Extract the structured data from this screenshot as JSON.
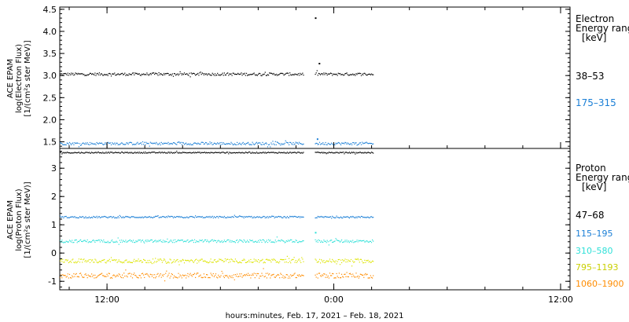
{
  "chart_data": [
    {
      "type": "scatter",
      "panel": "electron",
      "ylabel_lines": [
        "ACE EPAM",
        "log(Electron Flux)",
        "[1/(cm²s ster MeV)]"
      ],
      "y_ticks": [
        "1.5",
        "2.0",
        "2.5",
        "3.0",
        "3.5",
        "4.0",
        "4.5"
      ],
      "ylim": [
        1.35,
        4.55
      ],
      "legend_title_lines": [
        "Electron",
        "Energy ranges",
        "[keV]"
      ],
      "series": [
        {
          "name": "38–53",
          "color": "#000000",
          "level": 3.03,
          "spread": 0.03,
          "outliers": [
            {
              "x_hours": 23.0,
              "y": 4.3
            },
            {
              "x_hours": 23.2,
              "y": 3.27
            }
          ]
        },
        {
          "name": "175–315",
          "color": "#1b7fd6",
          "level": 1.46,
          "spread": 0.03,
          "outliers": [
            {
              "x_hours": 23.1,
              "y": 1.56
            }
          ]
        }
      ]
    },
    {
      "type": "scatter",
      "panel": "proton",
      "ylabel_lines": [
        "ACE EPAM",
        "log(Proton Flux)",
        "[1/(cm²s ster MeV)]"
      ],
      "y_ticks": [
        "-1",
        "0",
        "1",
        "2",
        "3"
      ],
      "ylim": [
        -1.3,
        3.7
      ],
      "legend_title_lines": [
        "Proton",
        "Energy ranges",
        "[keV]"
      ],
      "series": [
        {
          "name": "47–68",
          "color": "#000000",
          "level": 3.55,
          "spread": 0.02,
          "outliers": []
        },
        {
          "name": "115–195",
          "color": "#1b7fd6",
          "level": 1.27,
          "spread": 0.03,
          "outliers": []
        },
        {
          "name": "310–580",
          "color": "#2ee0d8",
          "level": 0.42,
          "spread": 0.05,
          "outliers": [
            {
              "x_hours": 23.0,
              "y": 0.72
            }
          ]
        },
        {
          "name": "795–1193",
          "color": "#dde400",
          "level": -0.28,
          "spread": 0.07,
          "outliers": []
        },
        {
          "name": "1060–1900",
          "color": "#ff8c00",
          "level": -0.8,
          "spread": 0.09,
          "outliers": []
        }
      ]
    }
  ],
  "x_axis": {
    "label": "hours:minutes, Feb. 17, 2021 – Feb. 18, 2021",
    "range_hours": [
      9.5,
      36.5
    ],
    "ticks": [
      {
        "hours": 12,
        "label": "12:00"
      },
      {
        "hours": 24,
        "label": "0:00"
      },
      {
        "hours": 36,
        "label": "12:00"
      }
    ],
    "data_segments_hours": [
      [
        9.5,
        22.4
      ],
      [
        23.0,
        26.1
      ]
    ]
  }
}
